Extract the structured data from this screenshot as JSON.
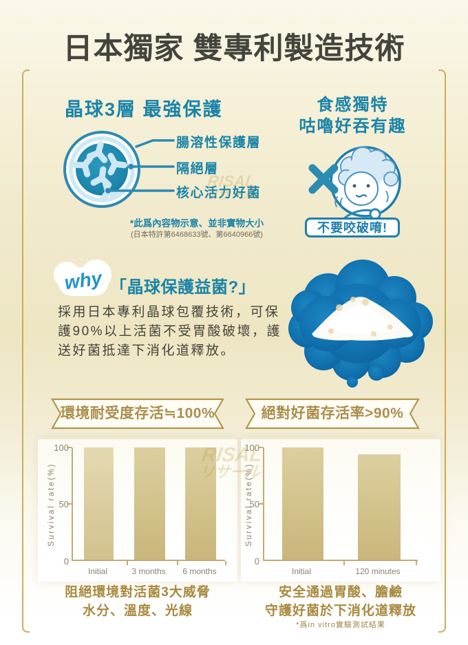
{
  "title": "日本獨家 雙專利製造技術",
  "crystal": {
    "heading": "晶球3層 最強保護",
    "layer1": "腸溶性保護層",
    "layer2": "隔絕層",
    "layer3": "核心活力好菌",
    "note": "*此爲內容物示意、並非實物大小",
    "patent": "(日本特許第6468633號、第6640966號)"
  },
  "texture": {
    "heading1": "食感獨特",
    "heading2": "咕嚕好吞有趣",
    "warning": "不要咬破唷!"
  },
  "why": {
    "badge": "why",
    "title": "「晶球保護益菌?」",
    "line1": "採用日本專利晶球包覆技術，可保",
    "line2": "護90%以上活菌不受胃酸破壞，護",
    "line3": "送好菌抵達下消化道釋放。"
  },
  "watermark": {
    "latin": "RISAL",
    "kana": "リサール"
  },
  "colors": {
    "teal": "#1a84a8",
    "gold_frame": "#c9ae58",
    "banner_gold": "#ab8e4c",
    "caption_gold": "#a8893f",
    "bar_tan": "#cab67b",
    "why_blue": "#2395cb",
    "bubble_blue": "#1173b0",
    "dark_text": "#45443c"
  },
  "chart_data": [
    {
      "type": "bar",
      "title": "環境耐受度存活≒100%",
      "ylabel": "Survival rate(%)",
      "categories": [
        "Initial",
        "3 months",
        "6 months"
      ],
      "values": [
        100,
        100,
        100
      ],
      "yticks": [
        "100",
        "50",
        "0"
      ],
      "ylim": [
        0,
        100
      ],
      "grid": false,
      "legend": "none",
      "caption1": "阻絕環境對活菌3大威脅",
      "caption2": "水分、溫度、光線"
    },
    {
      "type": "bar",
      "title": "絕對好菌存活率>90%",
      "ylabel": "Survival rate(%)",
      "categories": [
        "Initial",
        "120 minutes"
      ],
      "values": [
        100,
        94
      ],
      "yticks": [
        "100",
        "50",
        "0"
      ],
      "ylim": [
        0,
        100
      ],
      "grid": false,
      "legend": "none",
      "caption1": "安全通過胃酸、膽鹼",
      "caption2": "守護好菌於下消化道釋放",
      "footnote": "*爲in vitro實驗測試結果"
    }
  ]
}
